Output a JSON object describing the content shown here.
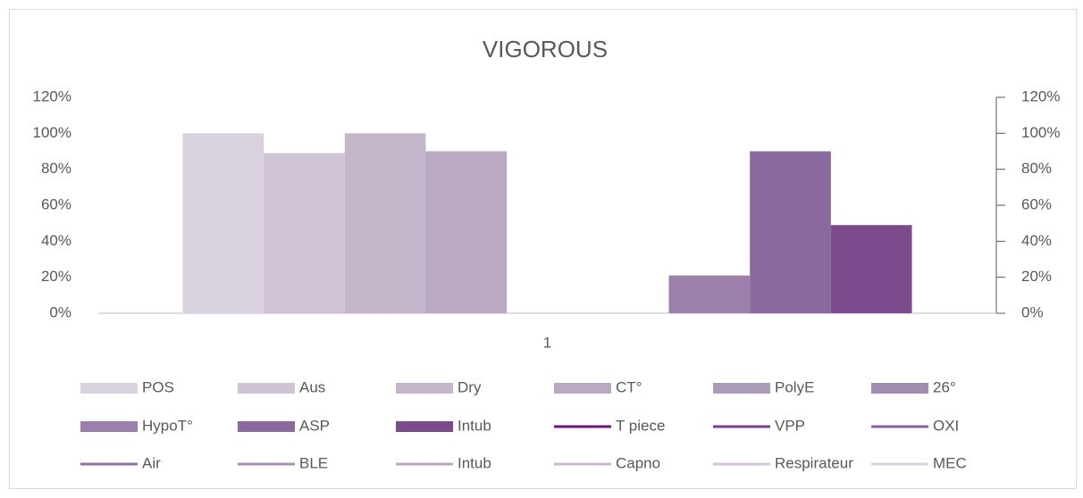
{
  "chart_data": {
    "type": "bar",
    "title": "VIGOROUS",
    "categories": [
      "1"
    ],
    "series": [
      {
        "name": "POS",
        "color": "#d9d2de",
        "values": [
          100
        ]
      },
      {
        "name": "Aus",
        "color": "#cfc4d6",
        "values": [
          89
        ]
      },
      {
        "name": "Dry",
        "color": "#c4b7cc",
        "values": [
          100
        ]
      },
      {
        "name": "CT°",
        "color": "#b9a9c3",
        "values": [
          90
        ]
      },
      {
        "name": "PolyE",
        "color": "#ad9bbb",
        "values": [
          0
        ]
      },
      {
        "name": "26°",
        "color": "#a28cb1",
        "values": [
          0
        ]
      },
      {
        "name": "HypoT°",
        "color": "#9a80ab",
        "values": [
          21
        ]
      },
      {
        "name": "ASP",
        "color": "#8a6a9e",
        "values": [
          90
        ]
      },
      {
        "name": "Intub",
        "color": "#7b4b8e",
        "values": [
          49
        ]
      },
      {
        "name": "T piece",
        "color": "#6e1583",
        "type": "line",
        "axis": "y2",
        "values": [
          null
        ]
      },
      {
        "name": "VPP",
        "color": "#7a3e91",
        "type": "line",
        "axis": "y2",
        "values": [
          null
        ]
      },
      {
        "name": "OXI",
        "color": "#8b5ea1",
        "type": "line",
        "axis": "y2",
        "values": [
          null
        ]
      },
      {
        "name": "Air",
        "color": "#9371a6",
        "type": "line",
        "axis": "y2",
        "values": [
          null
        ]
      },
      {
        "name": "BLE",
        "color": "#a690b5",
        "type": "line",
        "axis": "y2",
        "values": [
          null
        ]
      },
      {
        "name": "Intub",
        "color": "#b8a4c4",
        "type": "line",
        "axis": "y2",
        "values": [
          null
        ]
      },
      {
        "name": "Capno",
        "color": "#c7b7d0",
        "type": "line",
        "axis": "y2",
        "values": [
          null
        ]
      },
      {
        "name": "Respirateur",
        "color": "#d2c7d8",
        "type": "line",
        "axis": "y2",
        "values": [
          null
        ]
      },
      {
        "name": "MEC",
        "color": "#dad2df",
        "type": "line",
        "axis": "y2",
        "values": [
          null
        ]
      }
    ],
    "ylim": [
      0,
      120
    ],
    "yticks": [
      {
        "value": 0,
        "label": "0%"
      },
      {
        "value": 20,
        "label": "20%"
      },
      {
        "value": 40,
        "label": "40%"
      },
      {
        "value": 60,
        "label": "60%"
      },
      {
        "value": 80,
        "label": "80%"
      },
      {
        "value": 100,
        "label": "100%"
      },
      {
        "value": 120,
        "label": "120%"
      }
    ],
    "y2lim": [
      0,
      120
    ],
    "y2ticks": [
      {
        "value": 0,
        "label": "0%"
      },
      {
        "value": 20,
        "label": "20%"
      },
      {
        "value": 40,
        "label": "40%"
      },
      {
        "value": 60,
        "label": "60%"
      },
      {
        "value": 80,
        "label": "80%"
      },
      {
        "value": 100,
        "label": "100%"
      },
      {
        "value": 120,
        "label": "120%"
      }
    ],
    "grid": false,
    "legend": "bottom"
  }
}
